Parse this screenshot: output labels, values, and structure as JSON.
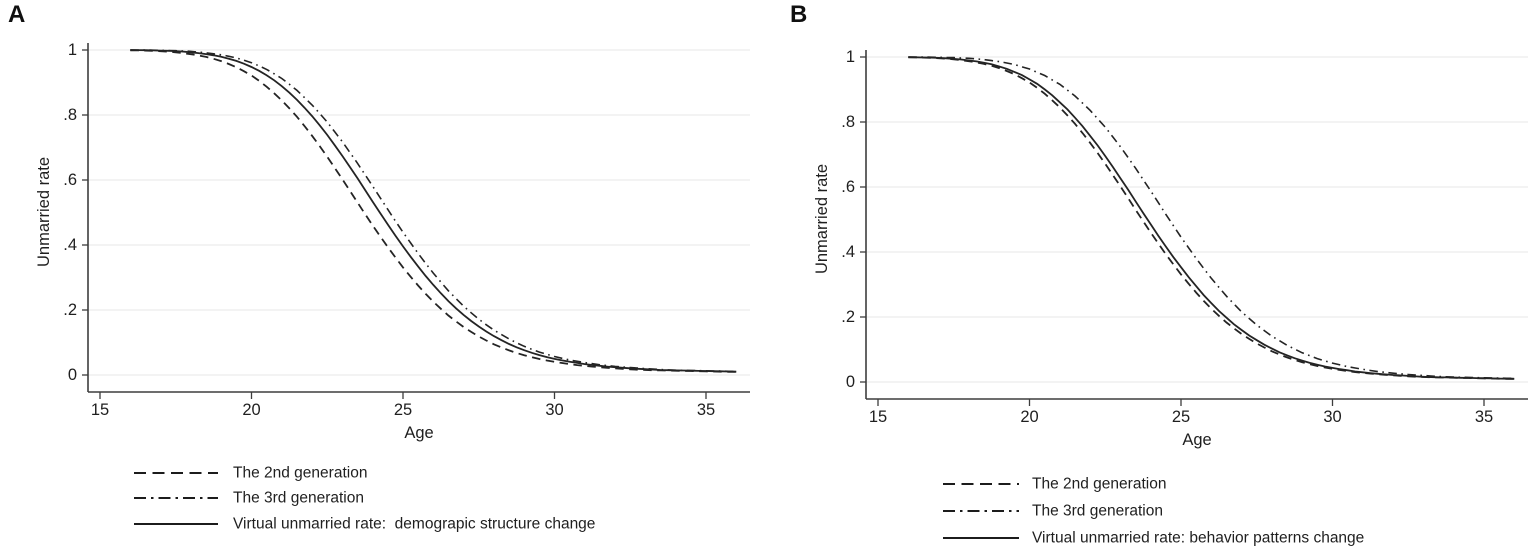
{
  "figure": {
    "background": "#ffffff",
    "text_color": "#1f1f1f",
    "grid_color": "#e7e7e7",
    "axis_color": "#3d3d3d",
    "line_color": "#242424"
  },
  "chart_data": [
    {
      "type": "line",
      "panel_label": "A",
      "xlabel": "Age",
      "ylabel": "Unmarried rate",
      "xlim": [
        14.6,
        36.5
      ],
      "ylim": [
        0,
        1
      ],
      "grid": true,
      "legend_position": "below-left",
      "xticks": [
        15,
        20,
        25,
        30,
        35
      ],
      "yticks": [
        {
          "value": 0,
          "label": "0"
        },
        {
          "value": 0.2,
          "label": ".2"
        },
        {
          "value": 0.4,
          "label": ".4"
        },
        {
          "value": 0.6,
          "label": ".6"
        },
        {
          "value": 0.8,
          "label": ".8"
        },
        {
          "value": 1,
          "label": "1"
        }
      ],
      "x_base": [
        16,
        16.5,
        17,
        17.5,
        18,
        18.5,
        19,
        19.5,
        20,
        20.5,
        21,
        21.5,
        22,
        22.5,
        23,
        23.5,
        24,
        24.5,
        25,
        25.5,
        26,
        26.5,
        27,
        27.5,
        28,
        28.5,
        29,
        29.5,
        30,
        30.5,
        31,
        31.5,
        32,
        32.5,
        33,
        33.5,
        34,
        34.5,
        35,
        35.5,
        36
      ],
      "base_values": [
        1.0,
        0.999,
        0.998,
        0.996,
        0.992,
        0.986,
        0.977,
        0.963,
        0.943,
        0.916,
        0.88,
        0.836,
        0.784,
        0.724,
        0.658,
        0.588,
        0.516,
        0.446,
        0.38,
        0.319,
        0.264,
        0.216,
        0.175,
        0.141,
        0.113,
        0.09,
        0.072,
        0.058,
        0.047,
        0.039,
        0.032,
        0.027,
        0.023,
        0.02,
        0.017,
        0.015,
        0.014,
        0.013,
        0.012,
        0.011,
        0.01
      ],
      "series": [
        {
          "name": "The 2nd generation",
          "style": "dashed",
          "age_shift": -0.4
        },
        {
          "name": "The 3rd generation",
          "style": "dashdot",
          "age_shift": 0.45
        },
        {
          "name": "Virtual unmarried rate:  demograpic structure change",
          "style": "solid",
          "age_shift": 0.12
        }
      ]
    },
    {
      "type": "line",
      "panel_label": "B",
      "xlabel": "Age",
      "ylabel": "Unmarried rate",
      "xlim": [
        14.6,
        36.5
      ],
      "ylim": [
        0,
        1
      ],
      "grid": true,
      "legend_position": "below-left",
      "xticks": [
        15,
        20,
        25,
        30,
        35
      ],
      "yticks": [
        {
          "value": 0,
          "label": "0"
        },
        {
          "value": 0.2,
          "label": ".2"
        },
        {
          "value": 0.4,
          "label": ".4"
        },
        {
          "value": 0.6,
          "label": ".6"
        },
        {
          "value": 0.8,
          "label": ".8"
        },
        {
          "value": 1,
          "label": "1"
        }
      ],
      "x_base": [
        16,
        16.5,
        17,
        17.5,
        18,
        18.5,
        19,
        19.5,
        20,
        20.5,
        21,
        21.5,
        22,
        22.5,
        23,
        23.5,
        24,
        24.5,
        25,
        25.5,
        26,
        26.5,
        27,
        27.5,
        28,
        28.5,
        29,
        29.5,
        30,
        30.5,
        31,
        31.5,
        32,
        32.5,
        33,
        33.5,
        34,
        34.5,
        35,
        35.5,
        36
      ],
      "base_values": [
        1.0,
        0.999,
        0.998,
        0.996,
        0.992,
        0.986,
        0.977,
        0.963,
        0.943,
        0.916,
        0.88,
        0.836,
        0.784,
        0.724,
        0.658,
        0.588,
        0.516,
        0.446,
        0.38,
        0.319,
        0.264,
        0.216,
        0.175,
        0.141,
        0.113,
        0.09,
        0.072,
        0.058,
        0.047,
        0.039,
        0.032,
        0.027,
        0.023,
        0.02,
        0.017,
        0.015,
        0.014,
        0.013,
        0.012,
        0.011,
        0.01
      ],
      "series": [
        {
          "name": "The 2nd generation",
          "style": "dashed",
          "age_shift": -0.4
        },
        {
          "name": "The 3rd generation",
          "style": "dashdot",
          "age_shift": 0.5
        },
        {
          "name": "Virtual unmarried rate: behavior patterns change",
          "style": "solid",
          "age_shift": -0.22
        }
      ]
    }
  ]
}
